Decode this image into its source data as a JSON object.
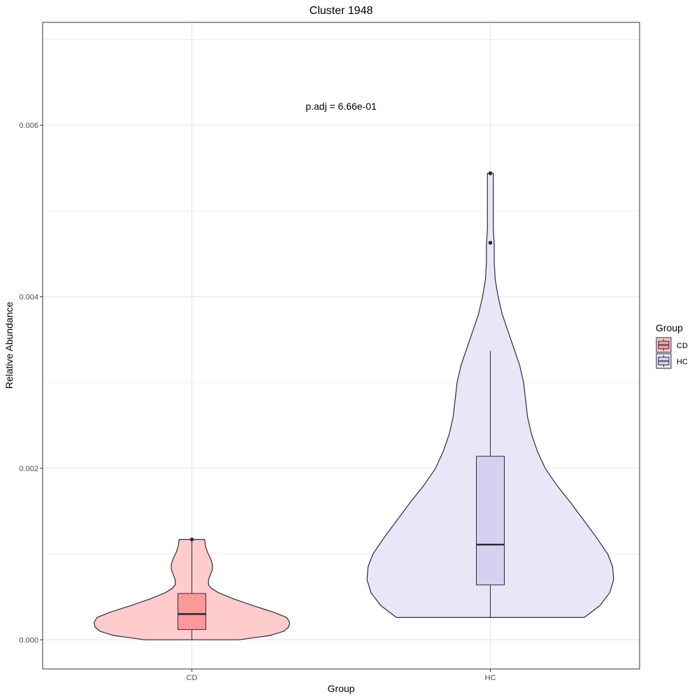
{
  "chart_data": {
    "type": "violin",
    "title": "Cluster 1948",
    "xlabel": "Group",
    "ylabel": "Relative Abundance",
    "categories": [
      "CD",
      "HC"
    ],
    "ylim": [
      -0.00034,
      0.0072
    ],
    "yticks": [
      0,
      0.002,
      0.004,
      0.006
    ],
    "ytick_labels": [
      "0.000",
      "0.002",
      "0.004",
      "0.006"
    ],
    "grid": true,
    "annotation": "p.adj = 6.66e-01",
    "legend": {
      "title": "Group",
      "placement": "right",
      "entries": [
        "CD",
        "HC"
      ]
    },
    "colors": {
      "CD_violin": "#FFCCCC",
      "CD_box": "#FF9999",
      "HC_violin": "#E8E6F7",
      "HC_box": "#D6D1F0",
      "outline": "#2b2b3b",
      "grid": "#e5e5e5",
      "panel_border": "#333333"
    },
    "series": [
      {
        "name": "CD",
        "min": 0.0,
        "q1": 0.00012,
        "median": 0.0003,
        "q3": 0.00054,
        "whisker_low": 0.0,
        "whisker_high": 0.00117,
        "outliers": [
          0.00117
        ],
        "violin_range": [
          0.0,
          0.00117
        ],
        "density_profile": [
          [
            0.0,
            0.48
          ],
          [
            5e-05,
            0.8
          ],
          [
            0.0001,
            0.94
          ],
          [
            0.00015,
            0.99
          ],
          [
            0.0002,
            1.0
          ],
          [
            0.00026,
            0.97
          ],
          [
            0.00032,
            0.84
          ],
          [
            0.0004,
            0.62
          ],
          [
            0.00048,
            0.42
          ],
          [
            0.00055,
            0.27
          ],
          [
            0.0006,
            0.2
          ],
          [
            0.00064,
            0.17
          ],
          [
            0.0007,
            0.17
          ],
          [
            0.00076,
            0.19
          ],
          [
            0.00082,
            0.21
          ],
          [
            0.00088,
            0.21
          ],
          [
            0.00095,
            0.19
          ],
          [
            0.00102,
            0.16
          ],
          [
            0.00109,
            0.14
          ],
          [
            0.00117,
            0.13
          ]
        ]
      },
      {
        "name": "HC",
        "min": 0.00026,
        "q1": 0.00064,
        "median": 0.00111,
        "q3": 0.00214,
        "whisker_low": 0.00026,
        "whisker_high": 0.00337,
        "outliers": [
          0.00463,
          0.00544
        ],
        "violin_range": [
          0.00026,
          0.00544
        ],
        "density_profile": [
          [
            0.00026,
            0.96
          ],
          [
            0.0004,
            1.12
          ],
          [
            0.00055,
            1.22
          ],
          [
            0.0007,
            1.26
          ],
          [
            0.00085,
            1.25
          ],
          [
            0.001,
            1.2
          ],
          [
            0.0012,
            1.08
          ],
          [
            0.0014,
            0.95
          ],
          [
            0.0016,
            0.82
          ],
          [
            0.0018,
            0.68
          ],
          [
            0.002,
            0.56
          ],
          [
            0.0022,
            0.48
          ],
          [
            0.0024,
            0.42
          ],
          [
            0.0026,
            0.38
          ],
          [
            0.0028,
            0.36
          ],
          [
            0.003,
            0.34
          ],
          [
            0.0032,
            0.3
          ],
          [
            0.0034,
            0.24
          ],
          [
            0.0036,
            0.18
          ],
          [
            0.0038,
            0.12
          ],
          [
            0.004,
            0.08
          ],
          [
            0.0042,
            0.05
          ],
          [
            0.0044,
            0.04
          ],
          [
            0.0046,
            0.04
          ],
          [
            0.0048,
            0.03
          ],
          [
            0.005,
            0.03
          ],
          [
            0.0052,
            0.03
          ],
          [
            0.00544,
            0.03
          ]
        ]
      }
    ]
  }
}
